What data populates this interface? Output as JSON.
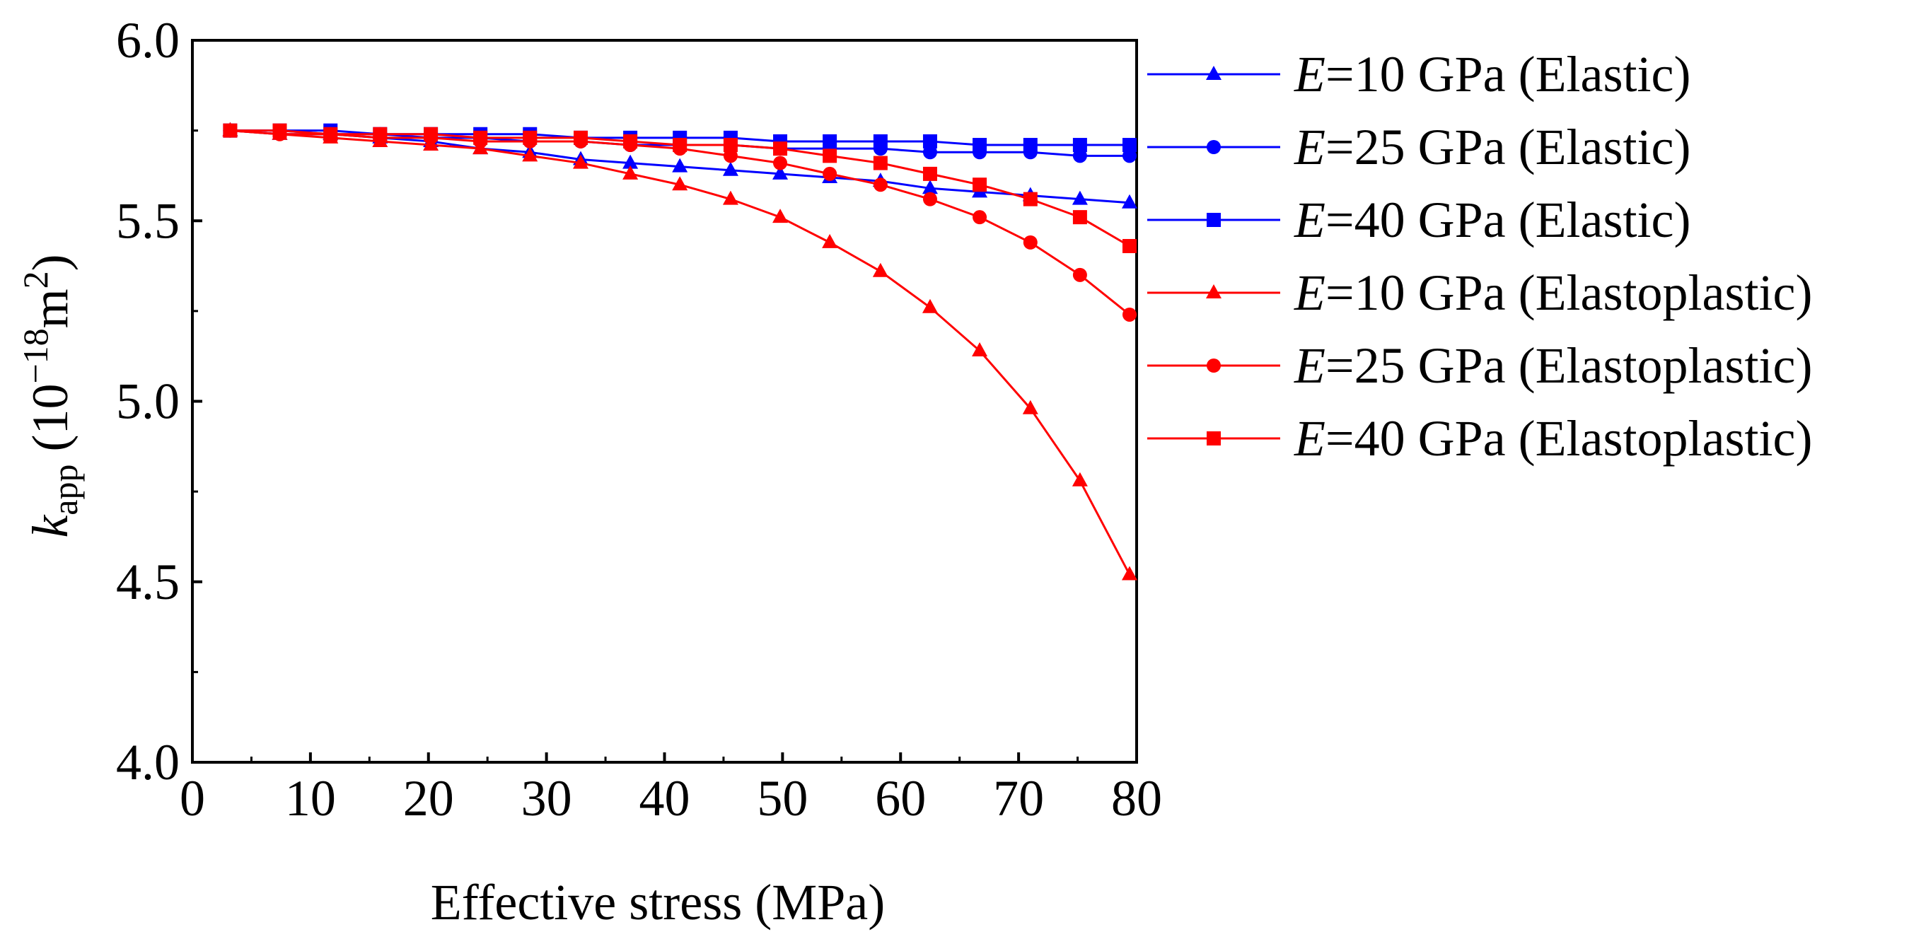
{
  "chart_data": {
    "type": "line",
    "xlabel": "Effective stress (MPa)",
    "ylabel": {
      "symbol": "k",
      "subscript": "app",
      "unit_open": " (10",
      "exponent": "−18",
      "unit_mid": "m",
      "unit_exp": "2",
      "unit_close": ")"
    },
    "xlim": [
      0,
      80
    ],
    "ylim": [
      4.0,
      6.0
    ],
    "x_ticks": [
      "0",
      "10",
      "20",
      "30",
      "40",
      "50",
      "60",
      "70",
      "80"
    ],
    "y_ticks": [
      "4.0",
      "4.5",
      "5.0",
      "5.5",
      "6.0"
    ],
    "grid": false,
    "legend_position": "right",
    "x": [
      3.2,
      7.4,
      11.7,
      15.9,
      20.2,
      24.4,
      28.6,
      32.9,
      37.1,
      41.3,
      45.6,
      49.8,
      54.0,
      58.3,
      62.5,
      66.7,
      71.0,
      75.2,
      79.4
    ],
    "series": [
      {
        "legend": {
          "italic": "E",
          "rest": "=10 GPa (Elastic)"
        },
        "color": "#0000ff",
        "marker": "triangle",
        "values": [
          5.75,
          5.74,
          5.74,
          5.73,
          5.72,
          5.7,
          5.69,
          5.67,
          5.66,
          5.65,
          5.64,
          5.63,
          5.62,
          5.61,
          5.59,
          5.58,
          5.57,
          5.56,
          5.55
        ]
      },
      {
        "legend": {
          "italic": "E",
          "rest": "=25 GPa (Elastic)"
        },
        "color": "#0000ff",
        "marker": "circle",
        "values": [
          5.75,
          5.75,
          5.74,
          5.74,
          5.73,
          5.73,
          5.72,
          5.72,
          5.71,
          5.71,
          5.71,
          5.7,
          5.7,
          5.7,
          5.69,
          5.69,
          5.69,
          5.68,
          5.68
        ]
      },
      {
        "legend": {
          "italic": "E",
          "rest": "=40 GPa (Elastic)"
        },
        "color": "#0000ff",
        "marker": "square",
        "values": [
          5.75,
          5.75,
          5.75,
          5.74,
          5.74,
          5.74,
          5.74,
          5.73,
          5.73,
          5.73,
          5.73,
          5.72,
          5.72,
          5.72,
          5.72,
          5.71,
          5.71,
          5.71,
          5.71
        ]
      },
      {
        "legend": {
          "italic": "E",
          "rest": "=10 GPa (Elastoplastic)"
        },
        "color": "#ff0000",
        "marker": "triangle",
        "values": [
          5.75,
          5.74,
          5.73,
          5.72,
          5.71,
          5.7,
          5.68,
          5.66,
          5.63,
          5.6,
          5.56,
          5.51,
          5.44,
          5.36,
          5.26,
          5.14,
          4.98,
          4.78,
          4.52
        ]
      },
      {
        "legend": {
          "italic": "E",
          "rest": "=25 GPa (Elastoplastic)"
        },
        "color": "#ff0000",
        "marker": "circle",
        "values": [
          5.75,
          5.74,
          5.74,
          5.73,
          5.73,
          5.72,
          5.72,
          5.72,
          5.71,
          5.7,
          5.68,
          5.66,
          5.63,
          5.6,
          5.56,
          5.51,
          5.44,
          5.35,
          5.24
        ]
      },
      {
        "legend": {
          "italic": "E",
          "rest": "=40 GPa (Elastoplastic)"
        },
        "color": "#ff0000",
        "marker": "square",
        "values": [
          5.75,
          5.75,
          5.74,
          5.74,
          5.74,
          5.73,
          5.73,
          5.73,
          5.72,
          5.71,
          5.71,
          5.7,
          5.68,
          5.66,
          5.63,
          5.6,
          5.56,
          5.51,
          5.43
        ]
      }
    ]
  }
}
